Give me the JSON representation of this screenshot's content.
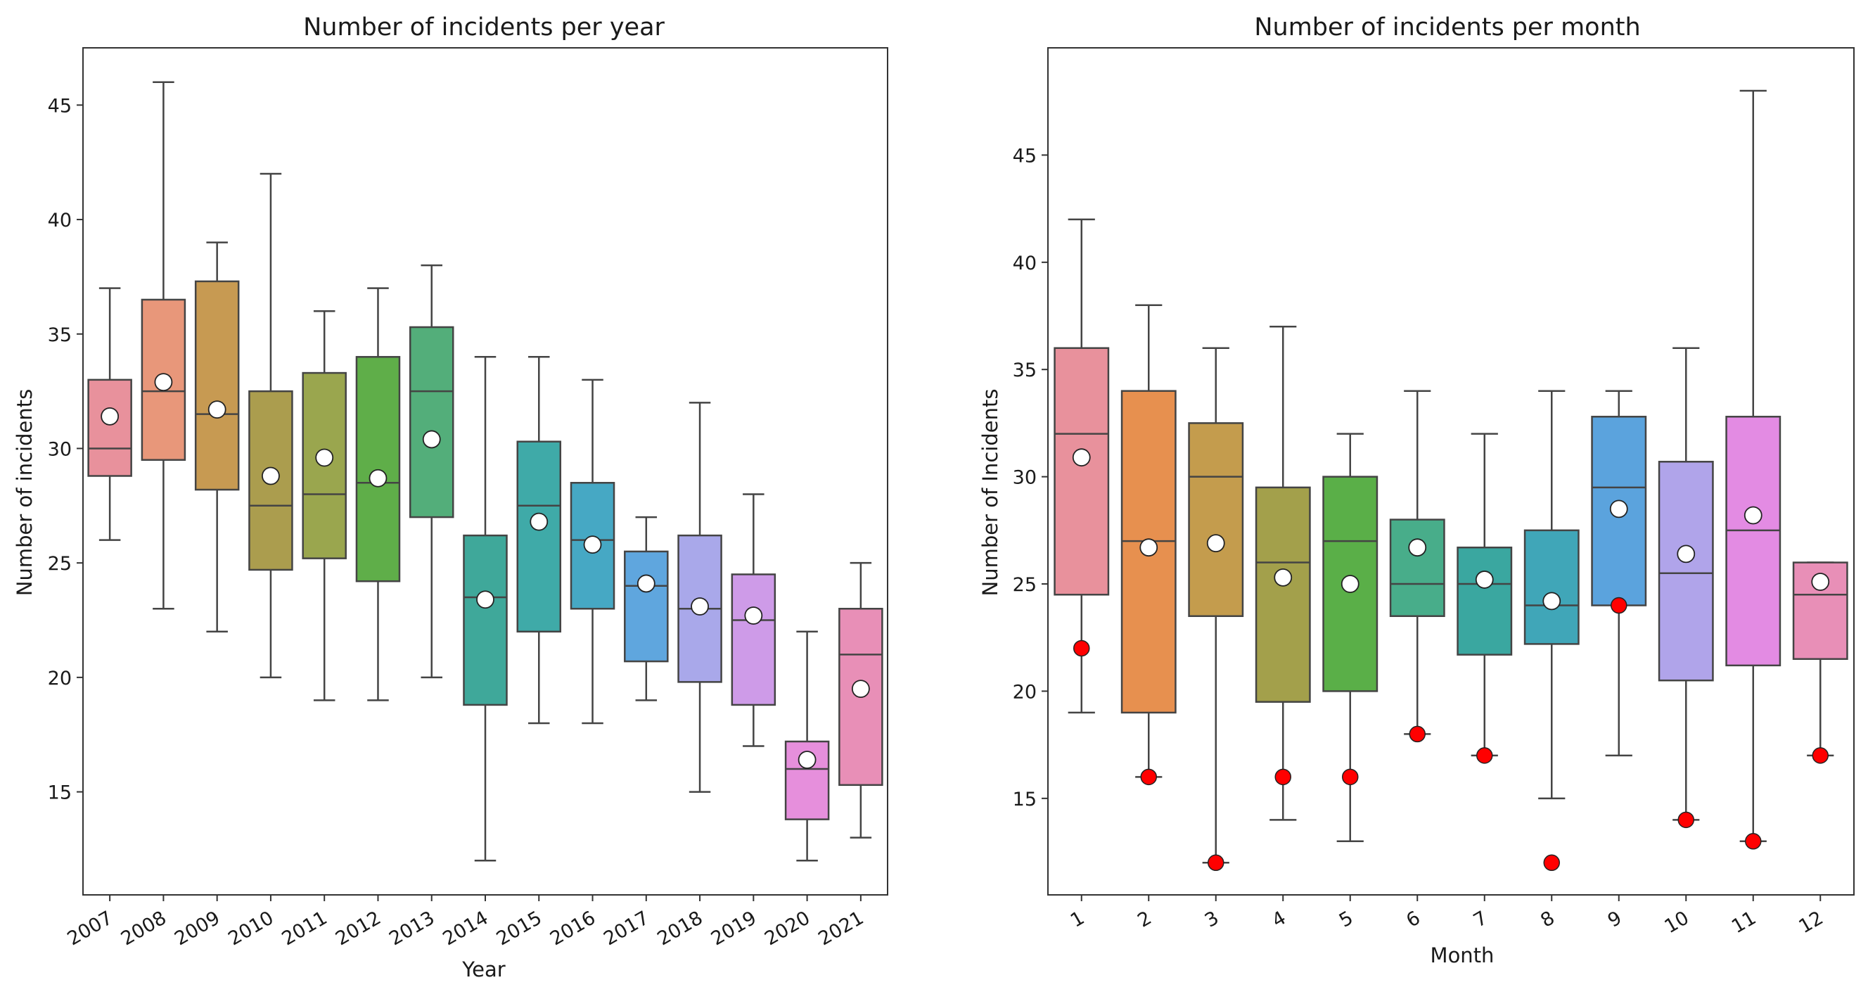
{
  "chart_data": [
    {
      "type": "box",
      "title": "Number of incidents per year",
      "xlabel": "Year",
      "ylabel": "Number of incidents",
      "ylim": [
        10.5,
        47.5
      ],
      "yticks": [
        15,
        20,
        25,
        30,
        35,
        40,
        45
      ],
      "grid": false,
      "legend": "none",
      "categories": [
        "2007",
        "2008",
        "2009",
        "2010",
        "2011",
        "2012",
        "2013",
        "2014",
        "2015",
        "2016",
        "2017",
        "2018",
        "2019",
        "2020",
        "2021"
      ],
      "colors": [
        "#e8919c",
        "#e8977a",
        "#c79a52",
        "#ab9d4e",
        "#9aa64e",
        "#5fae49",
        "#53ae7a",
        "#3fa89a",
        "#3faaa8",
        "#46a8c4",
        "#5fa6de",
        "#a9a8ea",
        "#ce9be8",
        "#e68fdc",
        "#e88fb7"
      ],
      "boxes": [
        {
          "min": 26,
          "q1": 28.8,
          "median": 30,
          "q3": 33,
          "max": 37,
          "mean": 31.4
        },
        {
          "min": 23,
          "q1": 29.5,
          "median": 32.5,
          "q3": 36.5,
          "max": 46,
          "mean": 32.9
        },
        {
          "min": 22,
          "q1": 28.2,
          "median": 31.5,
          "q3": 37.3,
          "max": 39,
          "mean": 31.7
        },
        {
          "min": 20,
          "q1": 24.7,
          "median": 27.5,
          "q3": 32.5,
          "max": 42,
          "mean": 28.8
        },
        {
          "min": 19,
          "q1": 25.2,
          "median": 28,
          "q3": 33.3,
          "max": 36,
          "mean": 29.6
        },
        {
          "min": 19,
          "q1": 24.2,
          "median": 28.5,
          "q3": 34,
          "max": 37,
          "mean": 28.7
        },
        {
          "min": 20,
          "q1": 27,
          "median": 32.5,
          "q3": 35.3,
          "max": 38,
          "mean": 30.4
        },
        {
          "min": 12,
          "q1": 18.8,
          "median": 23.5,
          "q3": 26.2,
          "max": 34,
          "mean": 23.4
        },
        {
          "min": 18,
          "q1": 22,
          "median": 27.5,
          "q3": 30.3,
          "max": 34,
          "mean": 26.8
        },
        {
          "min": 18,
          "q1": 23,
          "median": 26,
          "q3": 28.5,
          "max": 33,
          "mean": 25.8
        },
        {
          "min": 19,
          "q1": 20.7,
          "median": 24,
          "q3": 25.5,
          "max": 27,
          "mean": 24.1
        },
        {
          "min": 15,
          "q1": 19.8,
          "median": 23,
          "q3": 26.2,
          "max": 32,
          "mean": 23.1
        },
        {
          "min": 17,
          "q1": 18.8,
          "median": 22.5,
          "q3": 24.5,
          "max": 28,
          "mean": 22.7
        },
        {
          "min": 12,
          "q1": 13.8,
          "median": 16,
          "q3": 17.2,
          "max": 22,
          "mean": 16.4
        },
        {
          "min": 13,
          "q1": 15.3,
          "median": 21,
          "q3": 23,
          "max": 25,
          "mean": 19.5
        }
      ]
    },
    {
      "type": "box",
      "title": "Number of incidents per month",
      "xlabel": "Month",
      "ylabel": "Number of Incidents",
      "ylim": [
        10.5,
        50
      ],
      "yticks": [
        15,
        20,
        25,
        30,
        35,
        40,
        45
      ],
      "grid": false,
      "legend": "none",
      "categories": [
        "1",
        "2",
        "3",
        "4",
        "5",
        "6",
        "7",
        "8",
        "9",
        "10",
        "11",
        "12"
      ],
      "colors": [
        "#e8919c",
        "#e7904f",
        "#c49c4d",
        "#a3a04b",
        "#5aaf48",
        "#48ad8a",
        "#3aa7a0",
        "#40a6b8",
        "#5ba3dd",
        "#b0a4ea",
        "#e38be3",
        "#e88fb7"
      ],
      "boxes": [
        {
          "min": 19,
          "q1": 24.5,
          "median": 32,
          "q3": 36,
          "max": 42,
          "mean": 30.9,
          "outlier": 22
        },
        {
          "min": 16,
          "q1": 19,
          "median": 27,
          "q3": 34,
          "max": 38,
          "mean": 26.7,
          "outlier": 16
        },
        {
          "min": 12,
          "q1": 23.5,
          "median": 30,
          "q3": 32.5,
          "max": 36,
          "mean": 26.9,
          "outlier": 12
        },
        {
          "min": 14,
          "q1": 19.5,
          "median": 26,
          "q3": 29.5,
          "max": 37,
          "mean": 25.3,
          "outlier": 16
        },
        {
          "min": 13,
          "q1": 20,
          "median": 27,
          "q3": 30,
          "max": 32,
          "mean": 25,
          "outlier": 16
        },
        {
          "min": 18,
          "q1": 23.5,
          "median": 25,
          "q3": 28,
          "max": 34,
          "mean": 26.7,
          "outlier": 18
        },
        {
          "min": 17,
          "q1": 21.7,
          "median": 25,
          "q3": 26.7,
          "max": 32,
          "mean": 25.2,
          "outlier": 17
        },
        {
          "min": 15,
          "q1": 22.2,
          "median": 24,
          "q3": 27.5,
          "max": 34,
          "mean": 24.2,
          "outlier": 12
        },
        {
          "min": 17,
          "q1": 24,
          "median": 29.5,
          "q3": 32.8,
          "max": 34,
          "mean": 28.5,
          "outlier": 24
        },
        {
          "min": 14,
          "q1": 20.5,
          "median": 25.5,
          "q3": 30.7,
          "max": 36,
          "mean": 26.4,
          "outlier": 14
        },
        {
          "min": 13,
          "q1": 21.2,
          "median": 27.5,
          "q3": 32.8,
          "max": 48,
          "mean": 28.2,
          "outlier": 13
        },
        {
          "min": 17,
          "q1": 21.5,
          "median": 24.5,
          "q3": 26,
          "max": 26,
          "mean": 25.1,
          "outlier": 17
        }
      ]
    }
  ]
}
